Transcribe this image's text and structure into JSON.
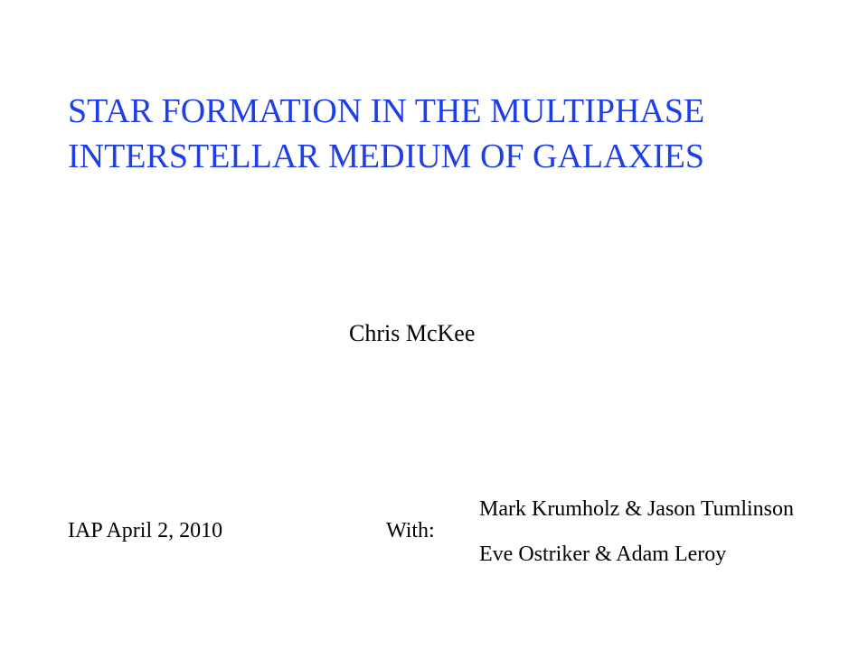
{
  "slide": {
    "title_line1": "STAR FORMATION IN THE MULTIPHASE",
    "title_line2": "INTERSTELLAR MEDIUM OF GALAXIES",
    "title_color": "#1f3fe6",
    "author": "Chris McKee",
    "venue_date": "IAP April 2, 2010",
    "with_label": "With:",
    "collaborators": [
      "Mark Krumholz &  Jason Tumlinson",
      "Eve Ostriker & Adam Leroy"
    ]
  }
}
